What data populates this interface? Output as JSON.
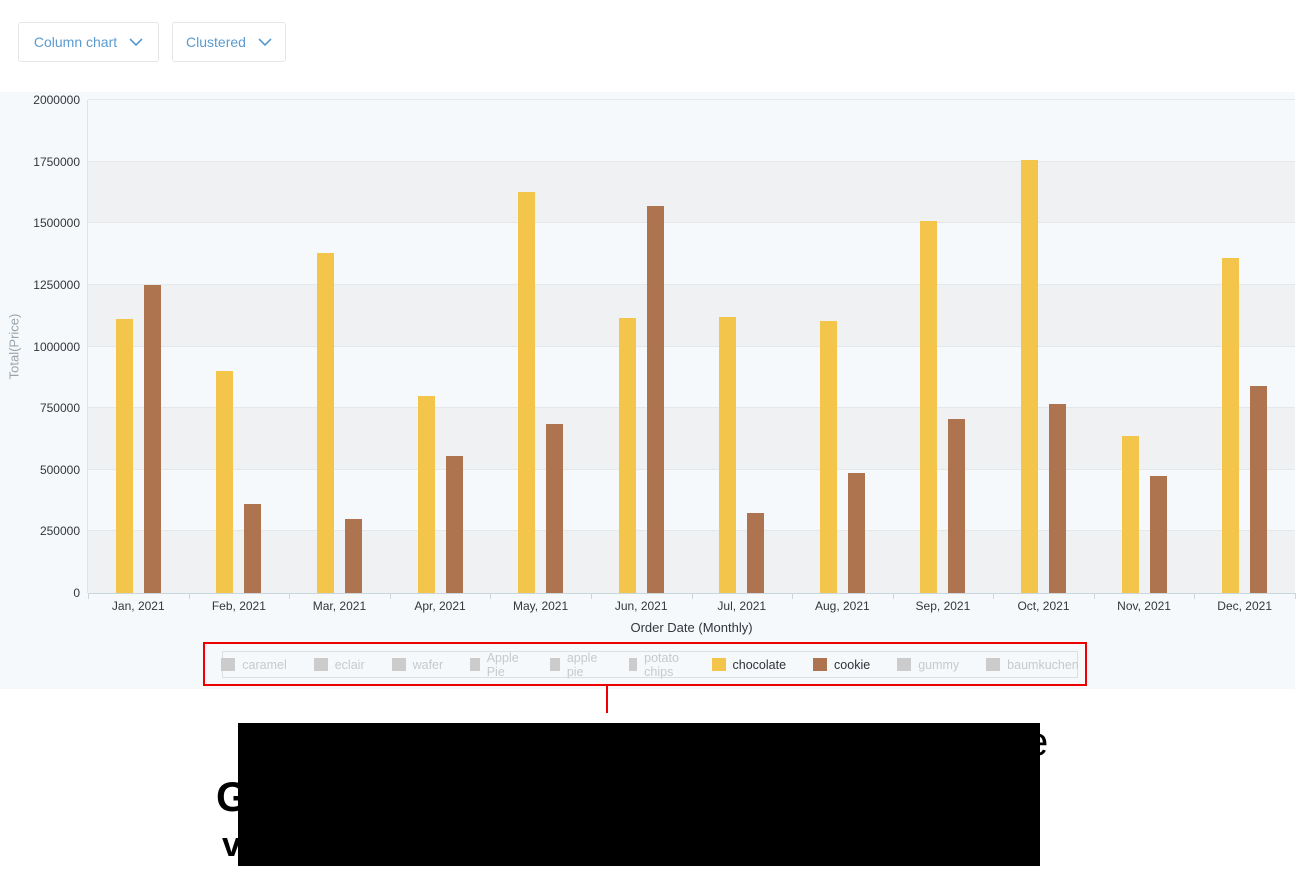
{
  "toolbar": {
    "chart_type_label": "Column chart",
    "chart_mode_label": "Clustered"
  },
  "chart_data": {
    "type": "bar",
    "title": "",
    "xlabel": "Order Date (Monthly)",
    "ylabel": "Total(Price)",
    "categories": [
      "Jan, 2021",
      "Feb, 2021",
      "Mar, 2021",
      "Apr, 2021",
      "May, 2021",
      "Jun, 2021",
      "Jul, 2021",
      "Aug, 2021",
      "Sep, 2021",
      "Oct, 2021",
      "Nov, 2021",
      "Dec, 2021"
    ],
    "series": [
      {
        "name": "chocolate",
        "color": "#F3C64B",
        "values": [
          1110000,
          900000,
          1380000,
          800000,
          1625000,
          1115000,
          1120000,
          1105000,
          1510000,
          1755000,
          635000,
          1360000
        ]
      },
      {
        "name": "cookie",
        "color": "#AE7450",
        "values": [
          1250000,
          360000,
          300000,
          555000,
          685000,
          1570000,
          325000,
          485000,
          705000,
          765000,
          475000,
          840000
        ]
      }
    ],
    "ylim": [
      0,
      2000000
    ],
    "yticks": [
      0,
      250000,
      500000,
      750000,
      1000000,
      1250000,
      1500000,
      1750000,
      2000000
    ],
    "grid": true,
    "legend_position": "bottom"
  },
  "legend": {
    "disabled_color": "#cccccc",
    "items": [
      {
        "label": "caramel",
        "state": "disabled"
      },
      {
        "label": "eclair",
        "state": "disabled"
      },
      {
        "label": "wafer",
        "state": "disabled"
      },
      {
        "label": "Apple Pie",
        "state": "disabled"
      },
      {
        "label": "apple pie",
        "state": "disabled"
      },
      {
        "label": "potato chips",
        "state": "disabled"
      },
      {
        "label": "chocolate",
        "state": "active",
        "color": "#F3C64B"
      },
      {
        "label": "cookie",
        "state": "active",
        "color": "#AE7450"
      },
      {
        "label": "gummy",
        "state": "disabled"
      },
      {
        "label": "baumkuchen",
        "state": "disabled"
      }
    ]
  },
  "annotation": {
    "highlight_color": "#ee0000"
  },
  "redaction": {
    "fragments": {
      "right_top": "e",
      "left_mid": "G",
      "left_bottom": "v"
    }
  }
}
